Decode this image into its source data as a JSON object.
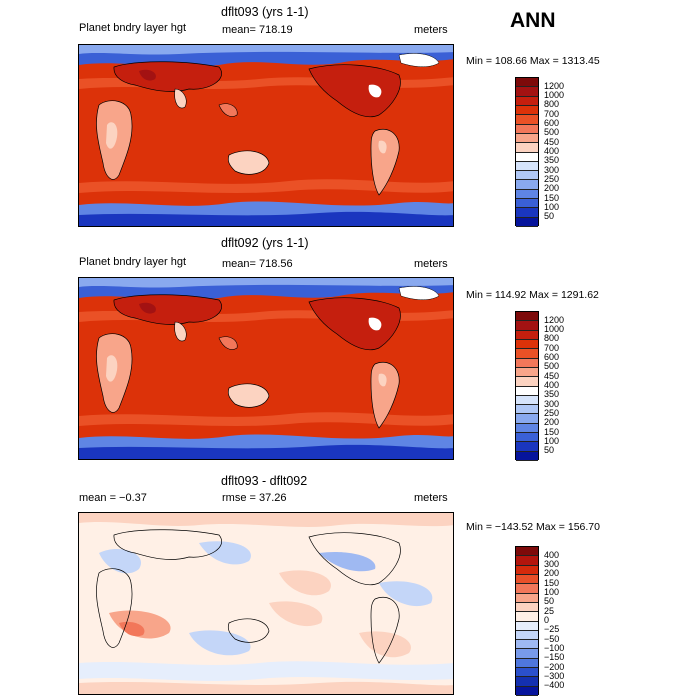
{
  "season": "ANN",
  "panels": [
    {
      "title": "dflt093 (yrs 1-1)",
      "left_label": "Planet bndry layer hgt",
      "mean_label": "mean= 718.19",
      "units": "meters",
      "minmax": "Min = 108.66 Max = 1313.45",
      "colorbar": {
        "labels": [
          "1200",
          "1000",
          "800",
          "700",
          "600",
          "500",
          "450",
          "400",
          "350",
          "300",
          "250",
          "200",
          "150",
          "100",
          "50"
        ],
        "colors": [
          "#7d0a0a",
          "#a31212",
          "#c51f0e",
          "#dc3209",
          "#ea5126",
          "#f2775a",
          "#f8a58a",
          "#fcd3c1",
          "#ffffff",
          "#d6e4fb",
          "#b0c8f6",
          "#89a9ef",
          "#5f85e4",
          "#3a60d6",
          "#1a36bf",
          "#06149c"
        ]
      }
    },
    {
      "title": "dflt092 (yrs 1-1)",
      "left_label": "Planet bndry layer hgt",
      "mean_label": "mean= 718.56",
      "units": "meters",
      "minmax": "Min = 114.92 Max = 1291.62",
      "colorbar": {
        "labels": [
          "1200",
          "1000",
          "800",
          "700",
          "600",
          "500",
          "450",
          "400",
          "350",
          "300",
          "250",
          "200",
          "150",
          "100",
          "50"
        ],
        "colors": [
          "#7d0a0a",
          "#a31212",
          "#c51f0e",
          "#dc3209",
          "#ea5126",
          "#f2775a",
          "#f8a58a",
          "#fcd3c1",
          "#ffffff",
          "#d6e4fb",
          "#b0c8f6",
          "#89a9ef",
          "#5f85e4",
          "#3a60d6",
          "#1a36bf",
          "#06149c"
        ]
      }
    },
    {
      "title": "dflt093 - dflt092",
      "left_label": "mean =  −0.37",
      "mean_label": "rmse =  37.26",
      "units": "meters",
      "minmax": "Min = −143.52 Max = 156.70",
      "colorbar": {
        "labels": [
          "400",
          "300",
          "200",
          "150",
          "100",
          "50",
          "25",
          "0",
          "−25",
          "−50",
          "−100",
          "−150",
          "−200",
          "−300",
          "−400"
        ],
        "colors": [
          "#7d0a0a",
          "#b3150d",
          "#d42a0c",
          "#e8502a",
          "#f2775a",
          "#f8a58a",
          "#fcd3c1",
          "#fff0e6",
          "#e6eefc",
          "#c4d6f8",
          "#9fb9f2",
          "#789aea",
          "#4f77de",
          "#2b50cc",
          "#1430b0",
          "#06149c"
        ]
      }
    }
  ]
}
